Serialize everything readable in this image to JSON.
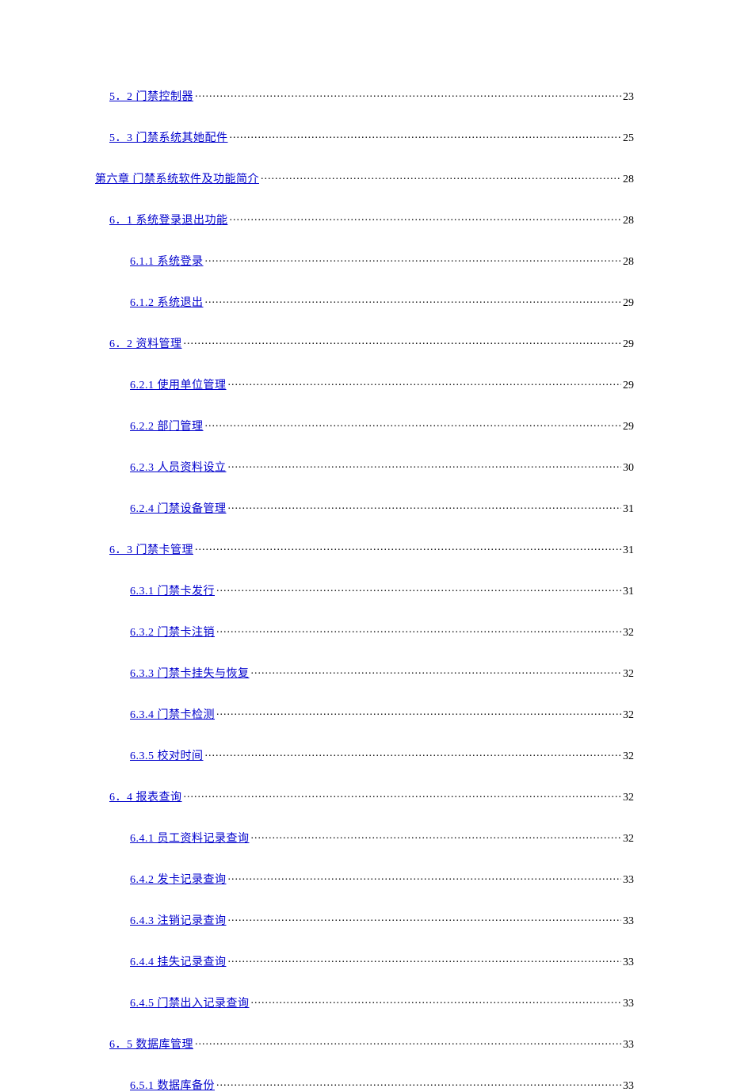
{
  "link_color": "#0000cc",
  "text_color": "#000000",
  "background_color": "#ffffff",
  "base_fontsize": 14,
  "row_gap": 34,
  "indent_level1": 0,
  "indent_level2": 18,
  "indent_level3": 44,
  "toc": [
    {
      "level": 2,
      "label": "5．2 门禁控制器",
      "page": "23"
    },
    {
      "level": 2,
      "label": "5．3 门禁系统其她配件",
      "page": "25"
    },
    {
      "level": 1,
      "label": "第六章 门禁系统软件及功能简介",
      "page": "28"
    },
    {
      "level": 2,
      "label": "6．1 系统登录退出功能",
      "page": "28"
    },
    {
      "level": 3,
      "label": "6.1.1  系统登录",
      "page": "28"
    },
    {
      "level": 3,
      "label": "6.1.2  系统退出",
      "page": "29"
    },
    {
      "level": 2,
      "label": "6．2 资料管理",
      "page": "29"
    },
    {
      "level": 3,
      "label": "6.2.1  使用单位管理",
      "page": "29"
    },
    {
      "level": 3,
      "label": "6.2.2  部门管理",
      "page": "29"
    },
    {
      "level": 3,
      "label": "6.2.3  人员资料设立",
      "page": "30"
    },
    {
      "level": 3,
      "label": "6.2.4  门禁设备管理",
      "page": "31"
    },
    {
      "level": 2,
      "label": "6．3 门禁卡管理",
      "page": "31"
    },
    {
      "level": 3,
      "label": "6.3.1  门禁卡发行",
      "page": "31"
    },
    {
      "level": 3,
      "label": "6.3.2  门禁卡注销",
      "page": "32"
    },
    {
      "level": 3,
      "label": "6.3.3  门禁卡挂失与恢复",
      "page": "32"
    },
    {
      "level": 3,
      "label": "6.3.4  门禁卡检测",
      "page": "32"
    },
    {
      "level": 3,
      "label": "6.3.5  校对时间",
      "page": "32"
    },
    {
      "level": 2,
      "label": "6．4 报表查询",
      "page": "32"
    },
    {
      "level": 3,
      "label": "6.4.1  员工资料记录查询",
      "page": "32"
    },
    {
      "level": 3,
      "label": "6.4.2  发卡记录查询",
      "page": "33"
    },
    {
      "level": 3,
      "label": "6.4.3  注销记录查询",
      "page": "33"
    },
    {
      "level": 3,
      "label": "6.4.4  挂失记录查询",
      "page": "33"
    },
    {
      "level": 3,
      "label": "6.4.5  门禁出入记录查询",
      "page": "33"
    },
    {
      "level": 2,
      "label": "6．5 数据库管理",
      "page": "33"
    },
    {
      "level": 3,
      "label": "6.5.1  数据库备份",
      "page": "33"
    }
  ]
}
